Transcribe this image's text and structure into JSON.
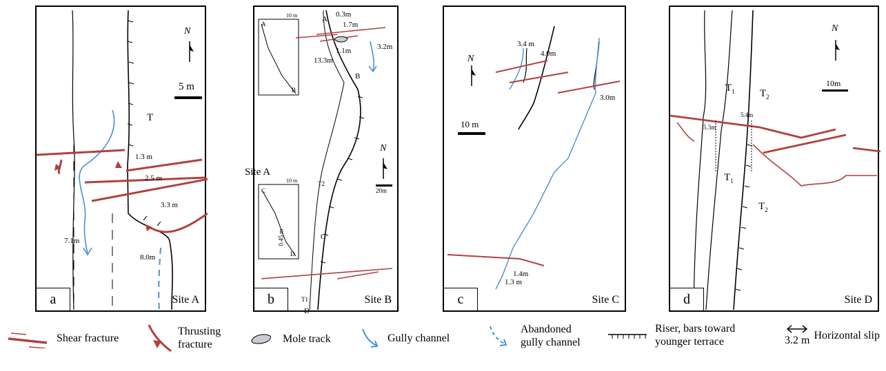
{
  "panels": [
    {
      "letter": "a",
      "site": "Site A",
      "labels": {
        "north": "N",
        "scale": "5 m",
        "terrace": "T",
        "m1": "1.3 m",
        "m2": "2.5 m",
        "m3": "3.3 m",
        "m4": "7.1m",
        "m5": "8.0m"
      }
    },
    {
      "letter": "b",
      "site": "Site B",
      "labels": {
        "north": "N",
        "scale": "20m",
        "siteA_overlay": "Site A",
        "m1": "0.3m",
        "m2": "1.7m",
        "m3": "3.2m",
        "m4": "1.1m",
        "m5": "13.3m",
        "pA": "A",
        "pB": "B",
        "pC": "C",
        "pD": "D",
        "t2": "T2",
        "t1": "T1",
        "inset_top_A": "A",
        "inset_top_B": "B",
        "inset_bot_C": "C",
        "inset_bot_D": "D",
        "inset_bot_val": "0.45 m",
        "inset_scale_top": "10 m",
        "inset_scale_bot": "10 m"
      }
    },
    {
      "letter": "c",
      "site": "Site C",
      "labels": {
        "north": "N",
        "scale": "10 m",
        "m1": "3.4 m",
        "m2": "4.0m",
        "m3": "3.0m",
        "m4": "1.4m",
        "m5": "1.3 m"
      }
    },
    {
      "letter": "d",
      "site": "Site D",
      "labels": {
        "north": "N",
        "scale": "10m",
        "t1a": "T",
        "t2a": "T",
        "t1b": "T",
        "t2b": "T",
        "sub1": "1",
        "sub2": "2",
        "m1": "5.4m",
        "m2": "5.3m"
      }
    }
  ],
  "legend": {
    "shear": "Shear fracture",
    "thrust_1": "Thrusting",
    "thrust_2": "fracture",
    "mole": "Mole track",
    "gully": "Gully channel",
    "abandoned_1": "Abandoned",
    "abandoned_2": "gully channel",
    "riser_1": "Riser, bars toward",
    "riser_2": "younger terrace",
    "slip_value": "3.2 m",
    "slip_label": "Horizontal slip"
  },
  "colors": {
    "fracture": "#b0413e",
    "gully": "#4a8fd6",
    "riser": "#000000"
  }
}
